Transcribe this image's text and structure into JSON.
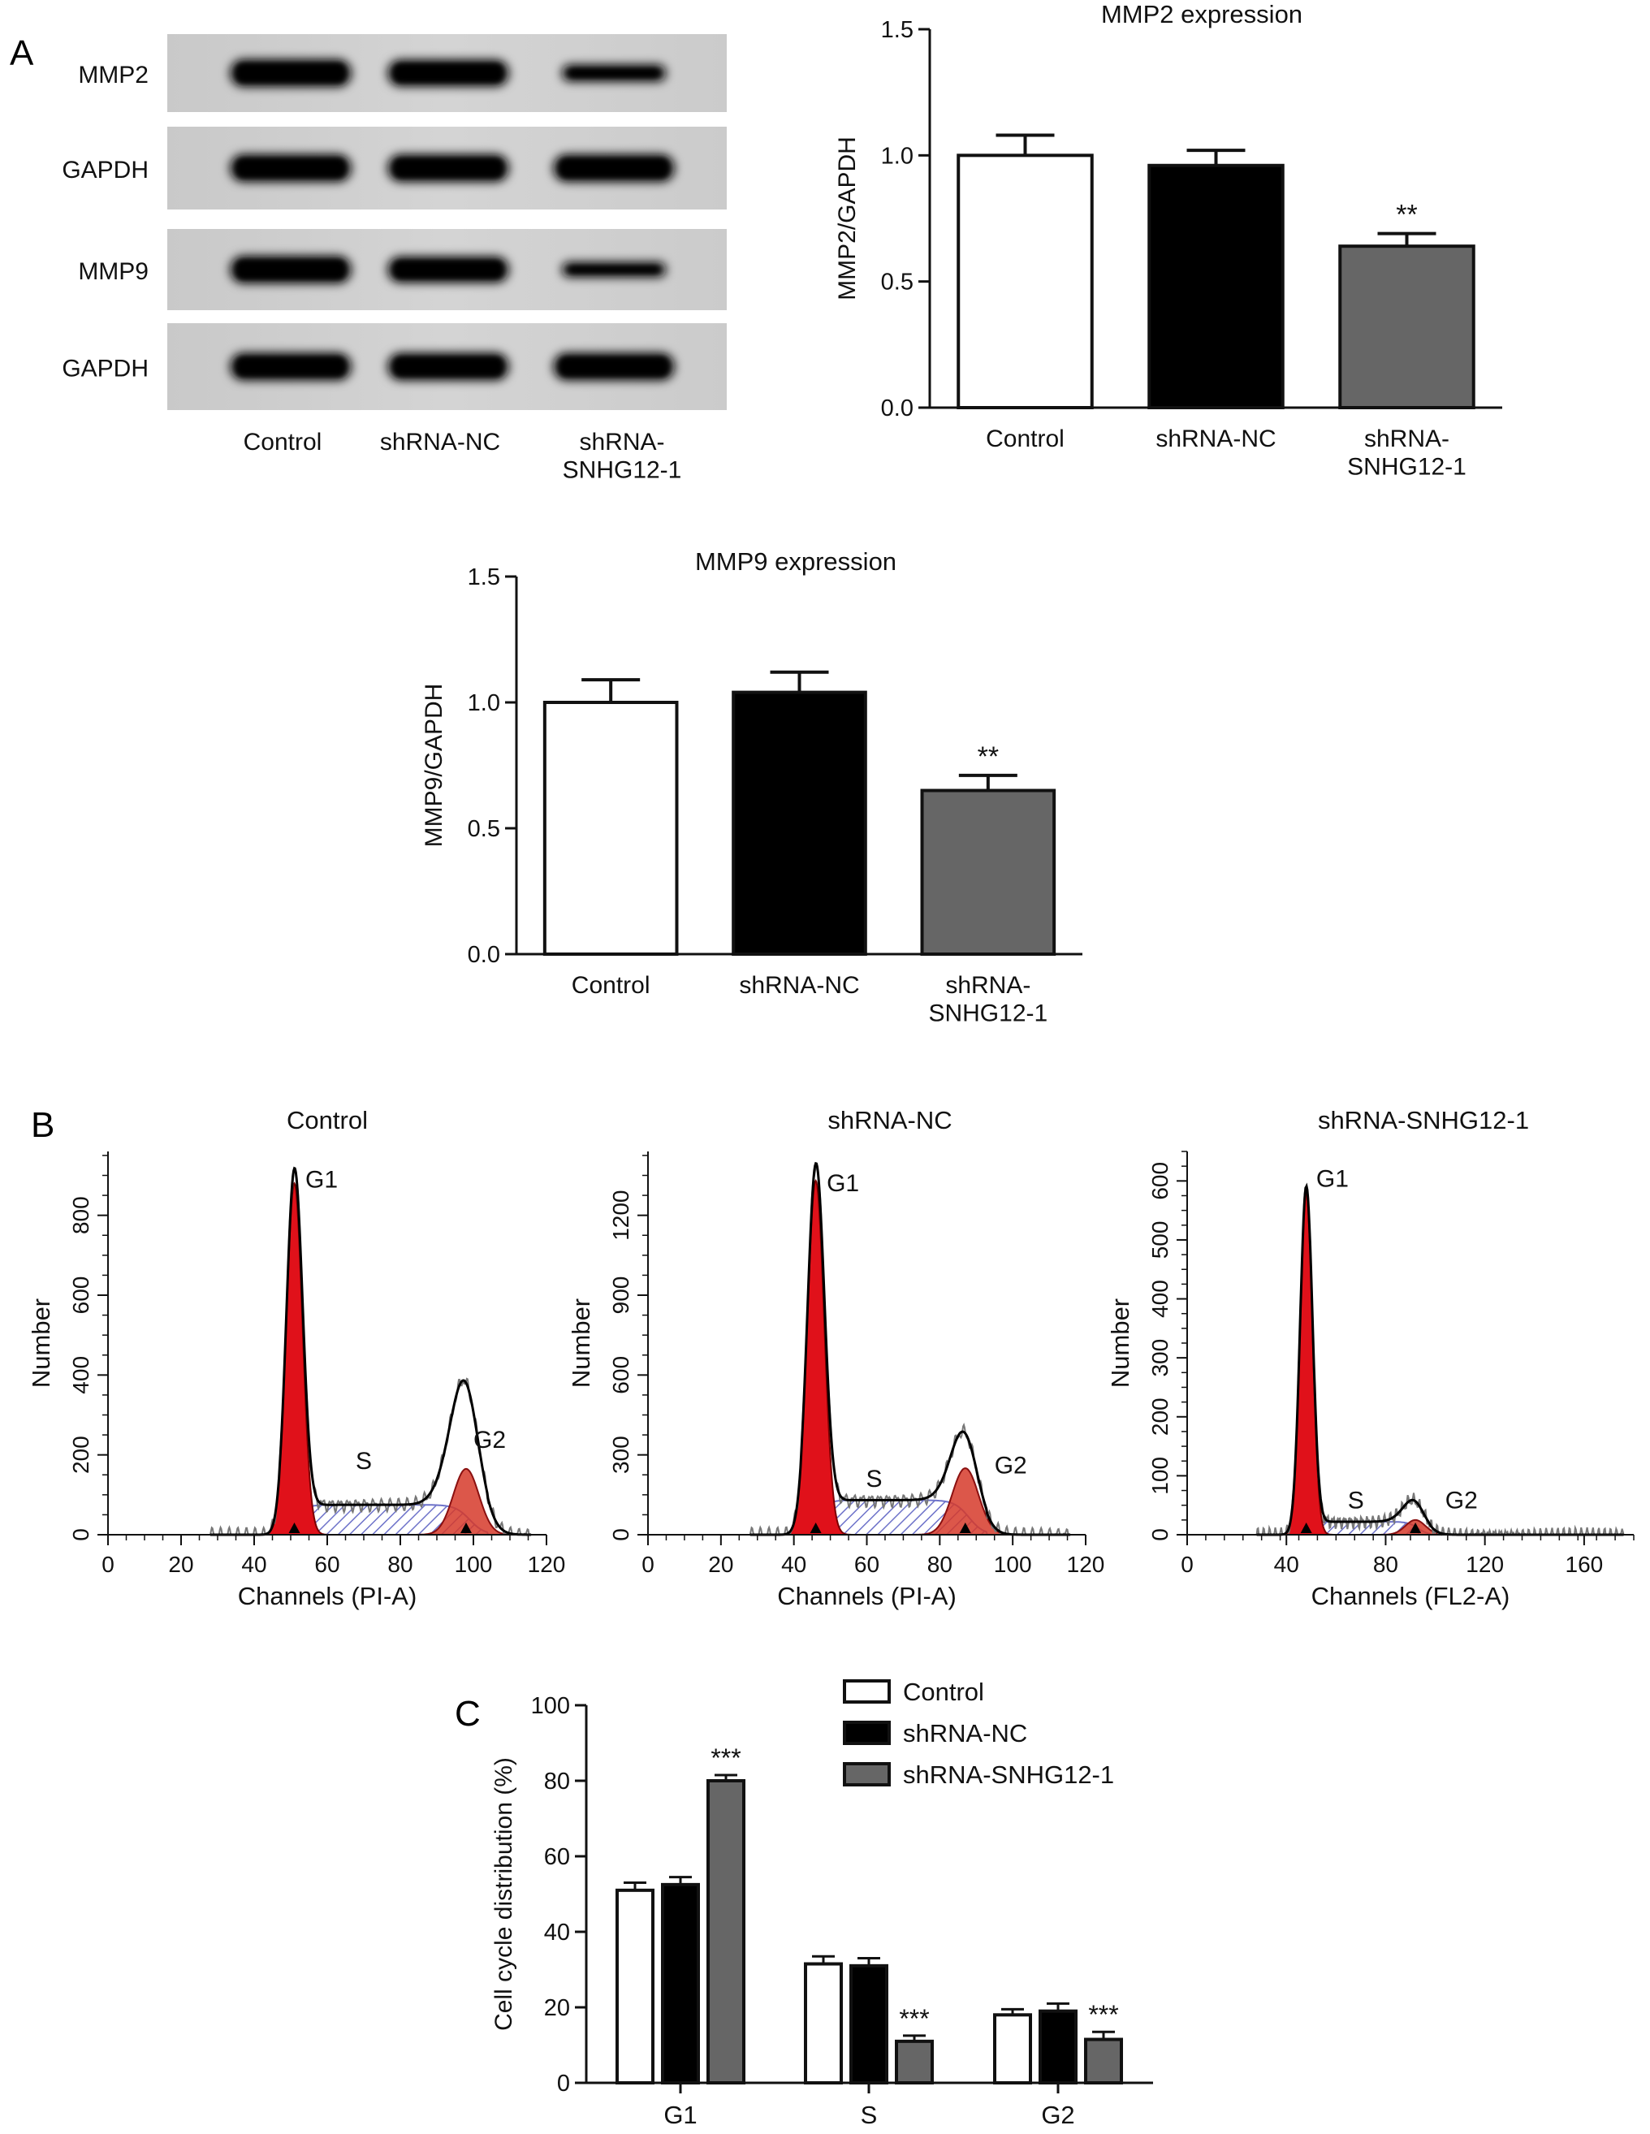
{
  "panels": {
    "A": "A",
    "B": "B",
    "C": "C"
  },
  "blot": {
    "rows": [
      "MMP2",
      "GAPDH",
      "MMP9",
      "GAPDH"
    ],
    "lanes": [
      "Control",
      "shRNA-NC",
      "shRNA-\nSNHG12-1"
    ],
    "band_intensity": [
      [
        1.0,
        0.97,
        0.62
      ],
      [
        1.0,
        1.0,
        1.0
      ],
      [
        1.0,
        0.95,
        0.55
      ],
      [
        1.0,
        1.0,
        1.0
      ]
    ]
  },
  "colors": {
    "control": "#ffffff",
    "nc": "#000000",
    "snhg": "#666666",
    "g1_fill": "#e0111a",
    "g2_fill": "#d63a2a",
    "s_hatch": "#6d72c9"
  },
  "chart_data": [
    {
      "id": "mmp2",
      "type": "bar",
      "title": "MMP2 expression",
      "ylabel": "MMP2/GAPDH",
      "categories": [
        "Control",
        "shRNA-NC",
        "shRNA-\nSNHG12-1"
      ],
      "values": [
        1.0,
        0.96,
        0.64
      ],
      "errors": [
        0.08,
        0.06,
        0.05
      ],
      "annotations": [
        "",
        "",
        "**"
      ],
      "ylim": [
        0,
        1.5
      ],
      "yticks": [
        "0.0",
        "0.5",
        "1.0",
        "1.5"
      ],
      "yticks_values": [
        0,
        0.5,
        1.0,
        1.5
      ]
    },
    {
      "id": "mmp9",
      "type": "bar",
      "title": "MMP9 expression",
      "ylabel": "MMP9/GAPDH",
      "categories": [
        "Control",
        "shRNA-NC",
        "shRNA-\nSNHG12-1"
      ],
      "values": [
        1.0,
        1.04,
        0.65
      ],
      "errors": [
        0.09,
        0.08,
        0.06
      ],
      "annotations": [
        "",
        "",
        "**"
      ],
      "ylim": [
        0,
        1.5
      ],
      "yticks": [
        "0.0",
        "0.5",
        "1.0",
        "1.5"
      ],
      "yticks_values": [
        0,
        0.5,
        1.0,
        1.5
      ]
    },
    {
      "id": "hist_control",
      "type": "area",
      "title": "Control",
      "xlabel": "Channels (PI-A)",
      "ylabel": "Number",
      "xlim": [
        0,
        120
      ],
      "ylim": [
        0,
        960
      ],
      "xticks": [
        0,
        20,
        40,
        60,
        80,
        100,
        120
      ],
      "yticks": [
        0,
        200,
        400,
        600,
        800
      ],
      "peaks": {
        "g1_pos": 51,
        "g1_height": 880,
        "g1_width": 2.2,
        "g2_pos": 98,
        "g2_height": 165,
        "g2_width": 3.5,
        "s_level": 75,
        "total_peak_g2": 360
      },
      "labels": {
        "g1": "G1",
        "s": "S",
        "g2": "G2"
      },
      "label_pos": {
        "g1": [
          54,
          870
        ],
        "s": [
          70,
          165
        ],
        "g2": [
          100,
          218
        ]
      }
    },
    {
      "id": "hist_nc",
      "type": "area",
      "title": "shRNA-NC",
      "xlabel": "Channels (PI-A)",
      "ylabel": "Number",
      "xlim": [
        0,
        120
      ],
      "ylim": [
        0,
        1440
      ],
      "xticks": [
        0,
        20,
        40,
        60,
        80,
        100,
        120
      ],
      "yticks": [
        0,
        300,
        600,
        900,
        1200
      ],
      "peaks": {
        "g1_pos": 46,
        "g1_height": 1330,
        "g1_width": 2.3,
        "g2_pos": 87,
        "g2_height": 250,
        "g2_width": 3.6,
        "s_level": 130,
        "total_peak_g2": 340
      },
      "labels": {
        "g1": "G1",
        "s": "S",
        "g2": "G2"
      },
      "label_pos": {
        "g1": [
          49,
          1290
        ],
        "s": [
          62,
          180
        ],
        "g2": [
          95,
          230
        ]
      }
    },
    {
      "id": "hist_snhg",
      "type": "area",
      "title": "shRNA-SNHG12-1",
      "xlabel": "Channels (FL2-A)",
      "ylabel": "Number",
      "xlim": [
        0,
        180
      ],
      "ylim": [
        0,
        650
      ],
      "xticks": [
        0,
        40,
        80,
        120,
        160
      ],
      "yticks": [
        0,
        100,
        200,
        300,
        400,
        500,
        600
      ],
      "peaks": {
        "g1_pos": 48,
        "g1_height": 580,
        "g1_width": 2.5,
        "g2_pos": 92,
        "g2_height": 25,
        "g2_width": 4.0,
        "s_level": 22,
        "total_peak_g2": 50
      },
      "labels": {
        "g1": "G1",
        "s": "S",
        "g2": "G2"
      },
      "label_pos": {
        "g1": [
          52,
          590
        ],
        "s": [
          68,
          45
        ],
        "g2": [
          104,
          45
        ]
      }
    },
    {
      "id": "cellcycle",
      "type": "bar",
      "ylabel": "Cell cycle distribution (%)",
      "categories": [
        "G1",
        "S",
        "G2"
      ],
      "series": [
        {
          "name": "Control",
          "values": [
            51,
            31.5,
            18
          ],
          "errors": [
            2,
            2,
            1.5
          ]
        },
        {
          "name": "shRNA-NC",
          "values": [
            52.5,
            31,
            19
          ],
          "errors": [
            2,
            2,
            2
          ]
        },
        {
          "name": "shRNA-SNHG12-1",
          "values": [
            80,
            11,
            11.5
          ],
          "errors": [
            1.5,
            1.5,
            2
          ]
        }
      ],
      "annotations": [
        [
          "",
          "",
          "***"
        ],
        [
          "",
          "",
          "***"
        ],
        [
          "",
          "",
          "***"
        ]
      ],
      "ylim": [
        0,
        100
      ],
      "yticks": [
        0,
        20,
        40,
        60,
        80,
        100
      ],
      "legend": "top-right"
    }
  ]
}
